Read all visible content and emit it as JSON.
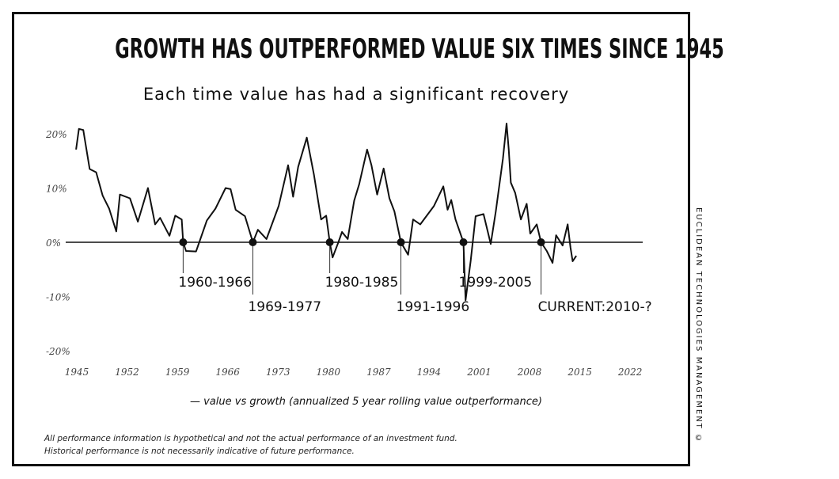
{
  "chart_data": {
    "type": "line",
    "title": "GROWTH HAS OUTPERFORMED VALUE SIX TIMES SINCE 1945",
    "subtitle": "Each time value has had a significant recovery",
    "xlabel": "",
    "ylabel": "",
    "xlim": [
      1945,
      2022
    ],
    "ylim": [
      -20,
      20
    ],
    "x_ticks": [
      "1945",
      "1952",
      "1959",
      "1966",
      "1973",
      "1980",
      "1987",
      "1994",
      "2001",
      "2008",
      "2015",
      "2022"
    ],
    "y_ticks": [
      "20%",
      "10%",
      "0%",
      "-10%",
      "-20%"
    ],
    "grid": false,
    "legend": "bottom",
    "series": [
      {
        "name": "value vs growth (annualized 5 year rolling value outperformance)",
        "color": "#111111",
        "points": [
          [
            1944.9,
            17.1
          ],
          [
            1945.3,
            20.9
          ],
          [
            1945.9,
            20.7
          ],
          [
            1946.8,
            13.5
          ],
          [
            1947.7,
            12.9
          ],
          [
            1948.6,
            8.6
          ],
          [
            1949.5,
            6.2
          ],
          [
            1950.5,
            2.0
          ],
          [
            1951.0,
            8.8
          ],
          [
            1952.4,
            8.1
          ],
          [
            1953.5,
            3.8
          ],
          [
            1954.9,
            10.0
          ],
          [
            1955.9,
            3.3
          ],
          [
            1956.6,
            4.5
          ],
          [
            1957.9,
            1.2
          ],
          [
            1958.7,
            4.9
          ],
          [
            1959.6,
            4.2
          ],
          [
            1959.8,
            0
          ],
          [
            1960.2,
            -1.6
          ],
          [
            1961.6,
            -1.7
          ],
          [
            1963.1,
            4.0
          ],
          [
            1964.3,
            6.2
          ],
          [
            1965.7,
            10.0
          ],
          [
            1966.4,
            9.8
          ],
          [
            1967.1,
            6.0
          ],
          [
            1968.4,
            4.8
          ],
          [
            1969.5,
            0
          ],
          [
            1970.2,
            2.3
          ],
          [
            1971.4,
            0.6
          ],
          [
            1973.1,
            6.7
          ],
          [
            1974.4,
            14.2
          ],
          [
            1975.1,
            8.4
          ],
          [
            1975.8,
            13.9
          ],
          [
            1977.0,
            19.3
          ],
          [
            1978.0,
            12.5
          ],
          [
            1979.0,
            4.2
          ],
          [
            1979.7,
            4.9
          ],
          [
            1980.2,
            0
          ],
          [
            1980.6,
            -2.8
          ],
          [
            1981.4,
            0
          ],
          [
            1981.9,
            1.9
          ],
          [
            1982.7,
            0.6
          ],
          [
            1983.6,
            7.7
          ],
          [
            1984.3,
            10.7
          ],
          [
            1985.4,
            17.1
          ],
          [
            1986.0,
            14.2
          ],
          [
            1986.8,
            8.8
          ],
          [
            1987.7,
            13.6
          ],
          [
            1988.5,
            8.1
          ],
          [
            1989.2,
            5.7
          ],
          [
            1990.1,
            0
          ],
          [
            1991.1,
            -2.3
          ],
          [
            1991.8,
            4.2
          ],
          [
            1992.8,
            3.3
          ],
          [
            1994.7,
            6.7
          ],
          [
            1996.0,
            10.3
          ],
          [
            1996.6,
            6.0
          ],
          [
            1997.1,
            7.8
          ],
          [
            1997.7,
            4.2
          ],
          [
            1998.8,
            0
          ],
          [
            1999.1,
            -10.7
          ],
          [
            1999.8,
            -3.5
          ],
          [
            2000.5,
            4.8
          ],
          [
            2001.6,
            5.2
          ],
          [
            2002.6,
            -0.3
          ],
          [
            2003.3,
            5.7
          ],
          [
            2004.3,
            15.4
          ],
          [
            2004.8,
            21.9
          ],
          [
            2005.1,
            17.2
          ],
          [
            2005.4,
            11.0
          ],
          [
            2006.0,
            9.1
          ],
          [
            2006.8,
            4.2
          ],
          [
            2007.6,
            7.1
          ],
          [
            2008.1,
            1.6
          ],
          [
            2009.0,
            3.3
          ],
          [
            2009.6,
            0
          ],
          [
            2010.4,
            -1.6
          ],
          [
            2011.2,
            -3.8
          ],
          [
            2011.7,
            1.3
          ],
          [
            2012.6,
            -0.6
          ],
          [
            2013.3,
            3.3
          ],
          [
            2013.7,
            -1.0
          ],
          [
            2014.0,
            -3.5
          ],
          [
            2014.5,
            -2.5
          ]
        ]
      }
    ],
    "annotations": [
      {
        "label": "1960-1966",
        "x": 1959.8
      },
      {
        "label": "1969-1977",
        "x": 1969.5
      },
      {
        "label": "1980-1985",
        "x": 1980.2
      },
      {
        "label": "1991-1996",
        "x": 1990.1
      },
      {
        "label": "1999-2005",
        "x": 1998.8
      },
      {
        "label": "CURRENT:2010-?",
        "x": 2009.6
      }
    ]
  },
  "legend_text": "— value vs growth (annualized 5 year rolling value outperformance)",
  "footer": [
    "All performance information is hypothetical and not the actual performance of an investment fund.",
    "Historical performance is not necessarily indicative of future performance."
  ],
  "credit": "EUCLIDEAN TECHNOLOGIES MANAGEMENT ©"
}
